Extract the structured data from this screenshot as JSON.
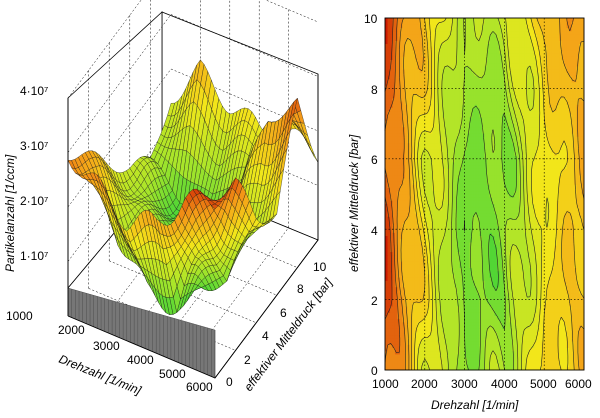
{
  "chart_data": [
    {
      "type": "surface3d",
      "xlabel": "Drehzahl  [1/min]",
      "ylabel": "effektiver Mitteldruck  [bar]",
      "zlabel": "Partikelanzahl [1/ccm]",
      "x_ticks": [
        "2000",
        "3000",
        "4000",
        "5000",
        "6000"
      ],
      "y_ticks": [
        "0",
        "2",
        "4",
        "6",
        "8",
        "10"
      ],
      "z_ticks": [
        "1·10⁷",
        "2·10⁷",
        "3·10⁷",
        "4·10⁷"
      ],
      "x_base_label": "1000",
      "xlim": [
        1000,
        6000
      ],
      "ylim": [
        0,
        10
      ],
      "zlim": [
        0,
        40000000
      ],
      "colormap": [
        "#2fd03a",
        "#a8e52a",
        "#f2e61a",
        "#f49a18",
        "#cc1a00"
      ],
      "surface_samples": {
        "x": [
          1000,
          2000,
          3000,
          4000,
          5000,
          6000
        ],
        "y": [
          0,
          2,
          4,
          6,
          8,
          10
        ],
        "z": [
          [
            30000000,
            26000000,
            22000000,
            24000000,
            30000000,
            33000000
          ],
          [
            24000000,
            12000000,
            4000000,
            3000000,
            18000000,
            30000000
          ],
          [
            18000000,
            8000000,
            3000000,
            2000000,
            5000000,
            20000000
          ],
          [
            12000000,
            6000000,
            2000000,
            3000000,
            8000000,
            15000000
          ],
          [
            8000000,
            4000000,
            3000000,
            10000000,
            25000000,
            30000000
          ],
          [
            15000000,
            22000000,
            18000000,
            16000000,
            17000000,
            16000000
          ]
        ]
      }
    },
    {
      "type": "heatmap",
      "xlabel": "Drehzahl  [1/min]",
      "ylabel": "effektiver Mitteldruck  [bar]",
      "x_ticks": [
        "1000",
        "2000",
        "3000",
        "4000",
        "5000",
        "6000"
      ],
      "y_ticks": [
        "0",
        "2",
        "4",
        "6",
        "8",
        "10"
      ],
      "xlim": [
        1000,
        6000
      ],
      "ylim": [
        0,
        10
      ],
      "grid": true,
      "colormap": [
        "#2fd03a",
        "#a8e52a",
        "#f2e61a",
        "#f49a18",
        "#cc1a00"
      ],
      "samples": {
        "x": [
          1000,
          2000,
          3000,
          4000,
          5000,
          6000
        ],
        "y": [
          0,
          2,
          4,
          6,
          8,
          10
        ],
        "z": [
          [
            0.88,
            0.45,
            0.2,
            0.28,
            0.55,
            0.62
          ],
          [
            0.95,
            0.52,
            0.15,
            0.18,
            0.5,
            0.65
          ],
          [
            0.92,
            0.5,
            0.12,
            0.2,
            0.48,
            0.66
          ],
          [
            0.85,
            0.45,
            0.18,
            0.15,
            0.5,
            0.64
          ],
          [
            0.9,
            0.55,
            0.2,
            0.25,
            0.55,
            0.7
          ],
          [
            0.95,
            0.6,
            0.28,
            0.35,
            0.62,
            0.78
          ]
        ]
      }
    }
  ]
}
